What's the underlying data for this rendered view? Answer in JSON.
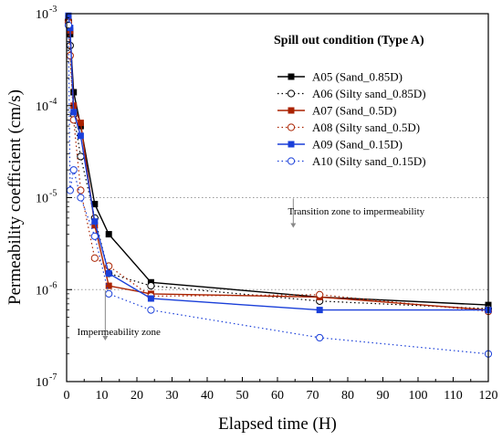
{
  "chart_data": {
    "type": "line",
    "xlabel": "Elapsed time (H)",
    "ylabel": "Permeability coefficient (cm/s)",
    "xlim": [
      0,
      120
    ],
    "ylim": [
      1e-07,
      0.001
    ],
    "y_scale": "log",
    "x_ticks": [
      "0",
      "10",
      "20",
      "30",
      "40",
      "50",
      "60",
      "70",
      "80",
      "90",
      "100",
      "110",
      "120"
    ],
    "y_tick_bases": [
      "10",
      "10",
      "10",
      "10",
      "10"
    ],
    "y_tick_exponents": [
      "-7",
      "-6",
      "-5",
      "-4",
      "-3"
    ],
    "legend_title": "Spill out condition (Type A)",
    "legend_position": "top-right",
    "series": [
      {
        "name": "A05 (Sand_0.85D)",
        "color": "#000000",
        "line": "solid",
        "marker": "square-filled",
        "x": [
          0.5,
          1,
          2,
          4,
          8,
          12,
          24,
          72,
          120
        ],
        "y": [
          0.0009,
          0.0006,
          0.00014,
          6e-05,
          8.5e-06,
          4e-06,
          1.2e-06,
          8.3e-07,
          6.8e-07
        ]
      },
      {
        "name": "A06 (Silty sand_0.85D)",
        "color": "#000000",
        "line": "dotted",
        "marker": "circle-open",
        "x": [
          0.5,
          1,
          2,
          4,
          8,
          12,
          24,
          72,
          120
        ],
        "y": [
          0.00085,
          0.00045,
          8e-05,
          2.8e-05,
          6e-06,
          1.5e-06,
          1.1e-06,
          7.5e-07,
          6.2e-07
        ]
      },
      {
        "name": "A07 (Sand_0.5D)",
        "color": "#aa2200",
        "line": "solid",
        "marker": "square-filled",
        "x": [
          0.5,
          1,
          2,
          4,
          8,
          12,
          24,
          72,
          120
        ],
        "y": [
          0.00085,
          0.00065,
          0.0001,
          6.5e-05,
          5e-06,
          1.1e-06,
          9e-07,
          8.3e-07,
          6e-07
        ]
      },
      {
        "name": "A08 (Silty sand_0.5D)",
        "color": "#aa2200",
        "line": "dotted",
        "marker": "circle-open",
        "x": [
          0.5,
          1,
          2,
          4,
          8,
          12,
          24,
          72,
          120
        ],
        "y": [
          0.0008,
          0.00035,
          7e-05,
          1.2e-05,
          2.2e-06,
          1.8e-06,
          8.5e-07,
          8.8e-07,
          5.8e-07
        ]
      },
      {
        "name": "A09 (Sand_0.15D)",
        "color": "#1a3fd9",
        "line": "solid",
        "marker": "square-filled",
        "x": [
          0.5,
          1,
          2,
          4,
          8,
          12,
          24,
          72,
          120
        ],
        "y": [
          0.00095,
          0.0007,
          8.5e-05,
          4.7e-05,
          5.5e-06,
          1.5e-06,
          8e-07,
          6e-07,
          6e-07
        ]
      },
      {
        "name": "A10 (Silty sand_0.15D)",
        "color": "#1a3fd9",
        "line": "dotted",
        "marker": "circle-open",
        "x": [
          0.5,
          1,
          2,
          4,
          8,
          12,
          24,
          72,
          120
        ],
        "y": [
          0.00075,
          1.2e-05,
          2e-05,
          1e-05,
          3.8e-06,
          9e-07,
          6e-07,
          3e-07,
          2e-07
        ]
      }
    ],
    "reference_lines": [
      {
        "y": 1e-05,
        "style": "dotted",
        "color": "#999999"
      },
      {
        "y": 1e-06,
        "style": "dotted",
        "color": "#999999"
      }
    ],
    "annotations": [
      {
        "text": "Transition zone to impermeability",
        "x": 63,
        "y": 7.2e-06,
        "arrow_from_y": 9.8e-06,
        "arrow_to_y": 4.7e-06
      },
      {
        "text": "Impermeability zone",
        "x": 3,
        "y": 3.5e-07,
        "arrow_from_y": 9.8e-07,
        "arrow_to_y": 2.8e-07
      }
    ]
  }
}
